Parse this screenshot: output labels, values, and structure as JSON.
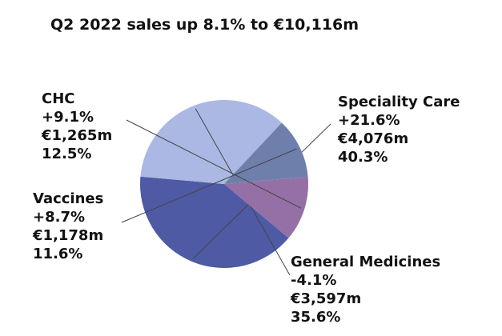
{
  "chart_data": {
    "type": "pie",
    "title": "Q2 2022 sales up 8.1% to €10,116m",
    "slices": [
      {
        "name": "Speciality Care",
        "change": "+21.6%",
        "amount": "€4,076m",
        "share": "40.3%",
        "value": 40.3,
        "color": "#4f5aa5"
      },
      {
        "name": "General Medicines",
        "change": "-4.1%",
        "amount": "€3,597m",
        "share": "35.6%",
        "value": 35.6,
        "color": "#aab8e3"
      },
      {
        "name": "Vaccines",
        "change": "+8.7%",
        "amount": "€1,178m",
        "share": "11.6%",
        "value": 11.6,
        "color": "#6e7fab"
      },
      {
        "name": "CHC",
        "change": "+9.1%",
        "amount": "€1,265m",
        "share": "12.5%",
        "value": 12.5,
        "color": "#9470a6"
      }
    ]
  }
}
